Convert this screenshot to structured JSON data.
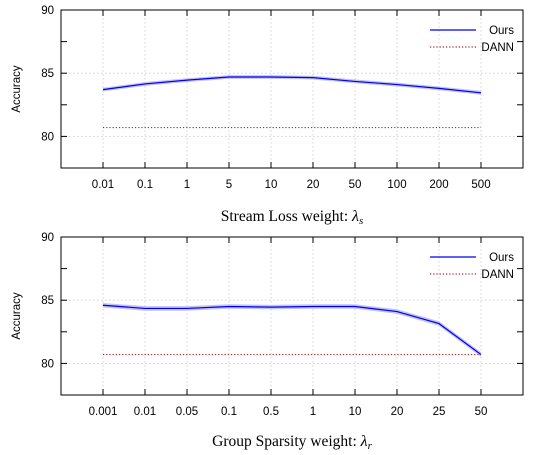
{
  "chart_data": [
    {
      "type": "line",
      "categories": [
        "0.01",
        "0.1",
        "1",
        "5",
        "10",
        "20",
        "50",
        "100",
        "200",
        "500"
      ],
      "xlabel": "Stream Loss weight: ",
      "xlabel_symbol": "λ",
      "xlabel_subscript": "s",
      "ylabel": "Accuracy",
      "ylim": [
        77.5,
        90
      ],
      "yticks": [
        80,
        85,
        90
      ],
      "grid": true,
      "legend_position": "top-right",
      "series": [
        {
          "name": "Ours",
          "style": "solid",
          "color": "#0000ee",
          "band_color": "#b8b8f0",
          "values": [
            83.7,
            84.15,
            84.45,
            84.7,
            84.7,
            84.65,
            84.35,
            84.1,
            83.8,
            83.45
          ],
          "band": 0.15
        },
        {
          "name": "DANN",
          "style": "dotted",
          "color": "#b22222",
          "values": [
            80.7,
            80.7,
            80.7,
            80.7,
            80.7,
            80.7,
            80.7,
            80.7,
            80.7,
            80.7
          ]
        }
      ]
    },
    {
      "type": "line",
      "categories": [
        "0.001",
        "0.01",
        "0.05",
        "0.1",
        "0.5",
        "1",
        "10",
        "20",
        "25",
        "50"
      ],
      "xlabel": "Group Sparsity weight: ",
      "xlabel_symbol": "λ",
      "xlabel_subscript": "r",
      "ylabel": "Accuracy",
      "ylim": [
        77.5,
        90
      ],
      "yticks": [
        80,
        85,
        90
      ],
      "grid": true,
      "legend_position": "top-right",
      "series": [
        {
          "name": "Ours",
          "style": "solid",
          "color": "#0000ee",
          "band_color": "#b8b8f0",
          "values": [
            84.6,
            84.35,
            84.35,
            84.5,
            84.45,
            84.5,
            84.5,
            84.1,
            83.15,
            80.7
          ],
          "band": 0.18
        },
        {
          "name": "DANN",
          "style": "dotted",
          "color": "#b22222",
          "values": [
            80.7,
            80.7,
            80.7,
            80.7,
            80.7,
            80.7,
            80.7,
            80.7,
            80.7,
            80.7
          ]
        }
      ]
    }
  ]
}
